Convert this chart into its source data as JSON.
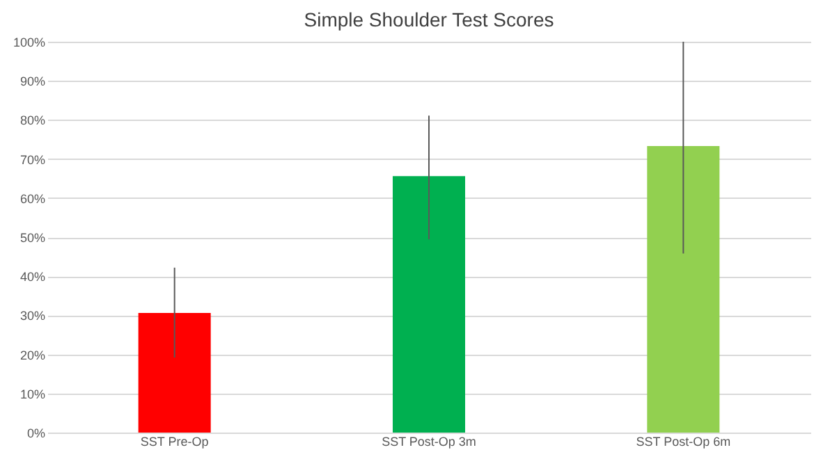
{
  "chart_data": {
    "type": "bar",
    "title": "Simple Shoulder Test Scores",
    "categories": [
      "SST Pre-Op",
      "SST Post-Op 3m",
      "SST Post-Op 6m"
    ],
    "values": [
      30.6,
      65.6,
      73.3
    ],
    "colors": [
      "#ff0000",
      "#00b050",
      "#92d050"
    ],
    "errors": [
      [
        19.2,
        42.2
      ],
      [
        49.4,
        81.1
      ],
      [
        45.8,
        100
      ]
    ],
    "ylim": [
      0,
      100
    ],
    "yticks": [
      {
        "value": 0,
        "label": "0%"
      },
      {
        "value": 10,
        "label": "10%"
      },
      {
        "value": 20,
        "label": "20%"
      },
      {
        "value": 30,
        "label": "30%"
      },
      {
        "value": 40,
        "label": "40%"
      },
      {
        "value": 50,
        "label": "50%"
      },
      {
        "value": 60,
        "label": "60%"
      },
      {
        "value": 70,
        "label": "70%"
      },
      {
        "value": 80,
        "label": "80%"
      },
      {
        "value": 90,
        "label": "90%"
      },
      {
        "value": 100,
        "label": "100%"
      }
    ],
    "grid": "y",
    "legend": false
  }
}
